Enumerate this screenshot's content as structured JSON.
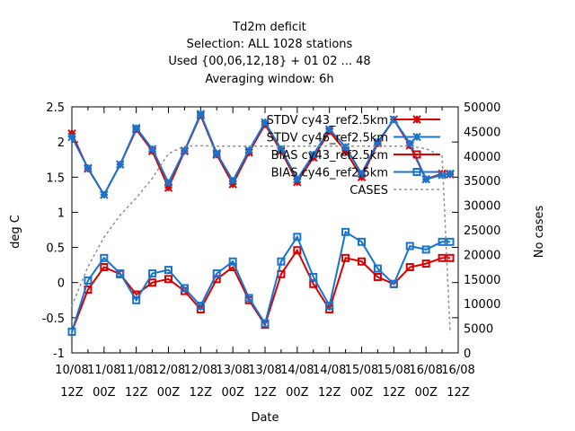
{
  "title_lines": [
    "Td2m deficit",
    "Selection: ALL    1028 stations",
    "Used {00,06,12,18} + 01 02 ... 48",
    "Averaging window:  6h"
  ],
  "chart_data": {
    "type": "line",
    "xlabel": "Date",
    "ylabel": "deg C",
    "y2label": "No cases",
    "ylim": [
      -1,
      2.5
    ],
    "y2lim": [
      0,
      50000
    ],
    "yticks": [
      "-1",
      "-0.5",
      "0",
      "0.5",
      "1",
      "1.5",
      "2",
      "2.5"
    ],
    "y2ticks": [
      "0",
      "5000",
      "10000",
      "15000",
      "20000",
      "25000",
      "30000",
      "35000",
      "40000",
      "45000",
      "50000"
    ],
    "xticks": [
      {
        "line1": "10/08",
        "line2": "12Z"
      },
      {
        "line1": "11/08",
        "line2": "00Z"
      },
      {
        "line1": "11/08",
        "line2": "12Z"
      },
      {
        "line1": "12/08",
        "line2": "00Z"
      },
      {
        "line1": "12/08",
        "line2": "12Z"
      },
      {
        "line1": "13/08",
        "line2": "00Z"
      },
      {
        "line1": "13/08",
        "line2": "12Z"
      },
      {
        "line1": "14/08",
        "line2": "00Z"
      },
      {
        "line1": "14/08",
        "line2": "12Z"
      },
      {
        "line1": "15/08",
        "line2": "00Z"
      },
      {
        "line1": "15/08",
        "line2": "12Z"
      },
      {
        "line1": "16/08",
        "line2": "00Z"
      },
      {
        "line1": "16/08",
        "line2": "12Z"
      }
    ],
    "x_hours": [
      0,
      3,
      6,
      9,
      12,
      15,
      18,
      21,
      24,
      27,
      30,
      33,
      36,
      39,
      42,
      45,
      48,
      51,
      54,
      57,
      60,
      63,
      66,
      69,
      72,
      75,
      78,
      81,
      84,
      87,
      90,
      93,
      96,
      99,
      102,
      105,
      108,
      111,
      114,
      117,
      120,
      123,
      126,
      129,
      132,
      135,
      138,
      141
    ],
    "grid": false,
    "legend_position": "top-right",
    "series": [
      {
        "name": "STDV cy43_ref2.5km",
        "color": "#d80000",
        "marker": "star",
        "x": [
          0,
          6,
          12,
          18,
          24,
          30,
          36,
          42,
          48,
          54,
          60,
          66,
          72,
          78,
          84,
          90,
          96,
          102,
          108,
          114,
          120,
          126,
          132,
          138,
          141
        ],
        "values": [
          2.12,
          1.62,
          1.25,
          1.68,
          2.18,
          1.87,
          1.35,
          1.87,
          2.38,
          1.82,
          1.4,
          1.85,
          2.25,
          1.87,
          1.43,
          1.78,
          2.15,
          1.87,
          1.5,
          1.98,
          2.32,
          1.95,
          1.47,
          1.55,
          1.54
        ]
      },
      {
        "name": "STDV cy46_ref2.5km",
        "color": "#1874cd",
        "marker": "star",
        "x": [
          0,
          6,
          12,
          18,
          24,
          30,
          36,
          42,
          48,
          54,
          60,
          66,
          72,
          78,
          84,
          90,
          96,
          102,
          108,
          114,
          120,
          126,
          132,
          138,
          141
        ],
        "values": [
          2.07,
          1.63,
          1.25,
          1.68,
          2.2,
          1.9,
          1.42,
          1.88,
          2.4,
          1.84,
          1.45,
          1.88,
          2.28,
          1.9,
          1.47,
          1.82,
          2.18,
          1.93,
          1.55,
          2.0,
          2.32,
          1.98,
          1.47,
          1.53,
          1.55
        ]
      },
      {
        "name": "BIAS cy43_ref2.5km",
        "color": "#d80000",
        "marker": "square",
        "x": [
          0,
          6,
          12,
          18,
          24,
          30,
          36,
          42,
          48,
          54,
          60,
          66,
          72,
          78,
          84,
          90,
          96,
          102,
          108,
          114,
          120,
          126,
          132,
          138,
          141
        ],
        "values": [
          -0.7,
          -0.1,
          0.22,
          0.12,
          -0.17,
          0.0,
          0.05,
          -0.12,
          -0.38,
          0.05,
          0.22,
          -0.25,
          -0.6,
          0.12,
          0.46,
          -0.02,
          -0.38,
          0.35,
          0.3,
          0.08,
          -0.02,
          0.22,
          0.27,
          0.35,
          0.35
        ]
      },
      {
        "name": "BIAS cy46_ref2.5km",
        "color": "#1874cd",
        "marker": "square",
        "x": [
          0,
          6,
          12,
          18,
          24,
          30,
          36,
          42,
          48,
          54,
          60,
          66,
          72,
          78,
          84,
          90,
          96,
          102,
          108,
          114,
          120,
          126,
          132,
          138,
          141
        ],
        "values": [
          -0.7,
          0.03,
          0.35,
          0.13,
          -0.25,
          0.13,
          0.18,
          -0.08,
          -0.33,
          0.13,
          0.3,
          -0.22,
          -0.58,
          0.3,
          0.65,
          0.08,
          -0.33,
          0.72,
          0.58,
          0.2,
          -0.02,
          0.52,
          0.47,
          0.58,
          0.58
        ]
      },
      {
        "name": "CASES",
        "color": "#909090",
        "marker": "none",
        "axis": "y2",
        "x": [
          0,
          6,
          12,
          18,
          24,
          30,
          36,
          42,
          48,
          54,
          60,
          66,
          72,
          78,
          84,
          90,
          96,
          102,
          108,
          114,
          120,
          126,
          132,
          138,
          141
        ],
        "values": [
          9500,
          17500,
          23500,
          28000,
          31500,
          35500,
          40500,
          42000,
          42100,
          42000,
          42000,
          42000,
          42000,
          42000,
          42000,
          42000,
          42000,
          42000,
          42000,
          42000,
          42000,
          42000,
          41500,
          40000,
          4000
        ]
      }
    ]
  }
}
